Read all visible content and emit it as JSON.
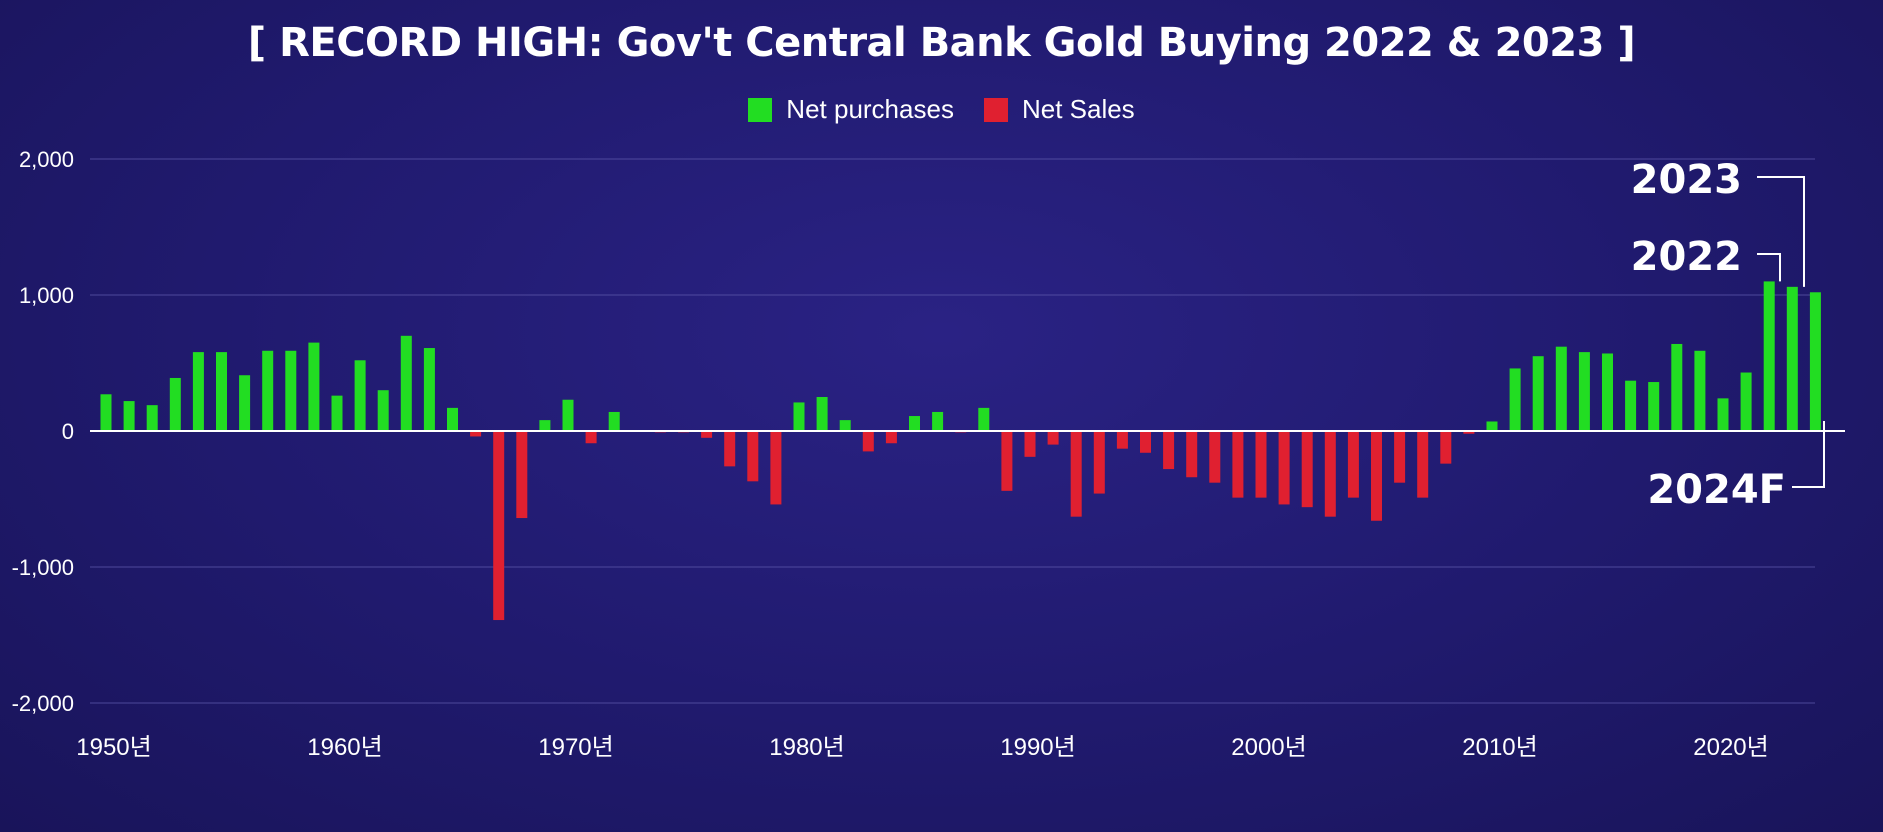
{
  "title": "[ RECORD HIGH: Gov't Central Bank Gold Buying 2022 & 2023 ]",
  "legend": [
    {
      "label": "Net purchases",
      "color": "#22dd22"
    },
    {
      "label": "Net Sales",
      "color": "#e02030"
    }
  ],
  "annotations": [
    "2023",
    "2022",
    "2024F"
  ],
  "chart_data": {
    "type": "bar",
    "ylim": [
      -2000,
      2000
    ],
    "y_ticks": [
      "2,000",
      "1,000",
      "0",
      "-1,000",
      "-2,000"
    ],
    "y_tick_values": [
      2000,
      1000,
      0,
      -1000,
      -2000
    ],
    "x_tick_labels": [
      "1950년",
      "1960년",
      "1970년",
      "1980년",
      "1990년",
      "2000년",
      "2010년",
      "2020년"
    ],
    "x_tick_years": [
      1950,
      1960,
      1970,
      1980,
      1990,
      2000,
      2010,
      2020
    ],
    "positive_color": "#22dd22",
    "negative_color": "#e02030",
    "categories": [
      1950,
      1951,
      1952,
      1953,
      1954,
      1955,
      1956,
      1957,
      1958,
      1959,
      1960,
      1961,
      1962,
      1963,
      1964,
      1965,
      1966,
      1967,
      1968,
      1969,
      1970,
      1971,
      1972,
      1973,
      1974,
      1975,
      1976,
      1977,
      1978,
      1979,
      1980,
      1981,
      1982,
      1983,
      1984,
      1985,
      1986,
      1987,
      1988,
      1989,
      1990,
      1991,
      1992,
      1993,
      1994,
      1995,
      1996,
      1997,
      1998,
      1999,
      2000,
      2001,
      2002,
      2003,
      2004,
      2005,
      2006,
      2007,
      2008,
      2009,
      2010,
      2011,
      2012,
      2013,
      2014,
      2015,
      2016,
      2017,
      2018,
      2019,
      2020,
      2021,
      2022,
      2023,
      2024
    ],
    "values": [
      270,
      220,
      190,
      390,
      580,
      580,
      410,
      590,
      590,
      650,
      260,
      520,
      300,
      700,
      610,
      170,
      -40,
      -1390,
      -640,
      80,
      230,
      -90,
      140,
      0,
      -10,
      -10,
      -50,
      -260,
      -370,
      -540,
      210,
      250,
      80,
      -150,
      -90,
      110,
      140,
      -10,
      170,
      -440,
      -190,
      -100,
      -630,
      -460,
      -130,
      -160,
      -280,
      -340,
      -380,
      -490,
      -490,
      -540,
      -560,
      -630,
      -490,
      -660,
      -380,
      -490,
      -240,
      -20,
      70,
      460,
      550,
      620,
      580,
      570,
      370,
      360,
      640,
      590,
      240,
      430,
      1100,
      1060,
      1020
    ]
  },
  "colors": {
    "background": "#201a6e",
    "gridline": "#5a55a8",
    "zero_line": "#ffffff"
  }
}
